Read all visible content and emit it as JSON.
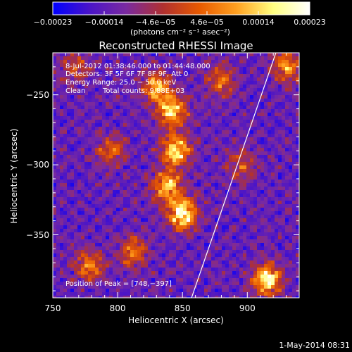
{
  "chart_data": {
    "type": "heatmap",
    "title": "Reconstructed RHESSI Image",
    "xlabel": "Heliocentric X (arcsec)",
    "ylabel": "Heliocentric Y (arcsec)",
    "xlim": [
      750,
      940
    ],
    "ylim": [
      -395,
      -220
    ],
    "x_ticks": [
      750,
      800,
      850,
      900
    ],
    "y_ticks": [
      -250,
      -300,
      -350
    ],
    "x_tick_labels": [
      "750",
      "800",
      "850",
      "900"
    ],
    "y_tick_labels": [
      "−250",
      "−300",
      "−350"
    ],
    "colorbar": {
      "min": -0.00023,
      "max": 0.00023,
      "tick_labels": [
        "−0.00023",
        "−0.00014",
        "−4.6e−05",
        "4.6e−05",
        "0.00014",
        "0.00023"
      ],
      "unit_label": "(photons cm⁻² s⁻¹ asec⁻²)",
      "stops": [
        "#0000ff",
        "#4a14c8",
        "#7a2aa0",
        "#b03030",
        "#e85a00",
        "#ffa020",
        "#ffff80",
        "#ffffff"
      ]
    },
    "annotations": {
      "time": "8-Jul-2012 01:38:46.000 to 01:44:48.000",
      "detectors": "Detectors: 3F 5F 6F 7F 8F 9F, Att 0",
      "energy": "Energy Range: 25.0 − 50.0 keV",
      "clean_label": "Clean",
      "total_counts": "Total counts: 9.88E+03",
      "peak": "Position of Peak = [748,−397]"
    },
    "limb_line": {
      "x": [
        857,
        922
      ],
      "y": [
        -395,
        -220
      ]
    },
    "peak_position": [
      748,
      -397
    ],
    "sources": [
      {
        "x": 850,
        "y": -335,
        "intensity": 1.0
      },
      {
        "x": 845,
        "y": -290,
        "intensity": 0.85
      },
      {
        "x": 842,
        "y": -262,
        "intensity": 0.8
      },
      {
        "x": 830,
        "y": -245,
        "intensity": 0.7
      },
      {
        "x": 838,
        "y": -315,
        "intensity": 0.75
      },
      {
        "x": 915,
        "y": -382,
        "intensity": 0.9
      },
      {
        "x": 930,
        "y": -230,
        "intensity": 0.6
      },
      {
        "x": 795,
        "y": -290,
        "intensity": 0.45
      },
      {
        "x": 778,
        "y": -372,
        "intensity": 0.55
      },
      {
        "x": 812,
        "y": -362,
        "intensity": 0.5
      },
      {
        "x": 880,
        "y": -240,
        "intensity": 0.5
      },
      {
        "x": 768,
        "y": -230,
        "intensity": 0.4
      },
      {
        "x": 895,
        "y": -300,
        "intensity": 0.35
      }
    ]
  },
  "footer": {
    "timestamp": "1-May-2014 08:31"
  }
}
